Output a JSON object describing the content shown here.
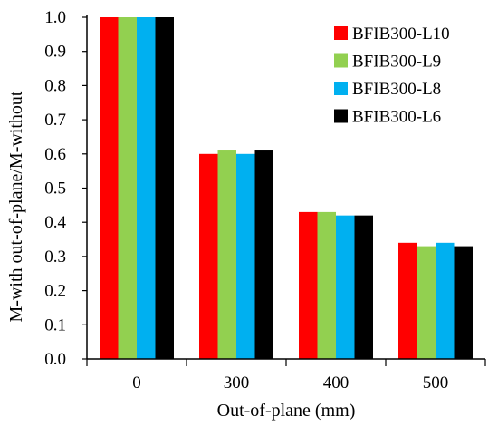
{
  "chart_data": {
    "type": "bar",
    "title": "",
    "xlabel": "Out-of-plane (mm)",
    "ylabel": "M-with out-of-plane/M-without",
    "categories": [
      "0",
      "300",
      "400",
      "500"
    ],
    "ylim": [
      0,
      1.0
    ],
    "yticks": [
      "0.0",
      "0.1",
      "0.2",
      "0.3",
      "0.4",
      "0.5",
      "0.6",
      "0.7",
      "0.8",
      "0.9",
      "1.0"
    ],
    "grid": false,
    "legend_position": "top-right",
    "series": [
      {
        "name": "BFIB300-L10",
        "color": "#ff0000",
        "values": [
          1.0,
          0.6,
          0.43,
          0.34
        ]
      },
      {
        "name": "BFIB300-L9",
        "color": "#92d050",
        "values": [
          1.0,
          0.61,
          0.43,
          0.33
        ]
      },
      {
        "name": "BFIB300-L8",
        "color": "#00b0f0",
        "values": [
          1.0,
          0.6,
          0.42,
          0.34
        ]
      },
      {
        "name": "BFIB300-L6",
        "color": "#000000",
        "values": [
          1.0,
          0.61,
          0.42,
          0.33
        ]
      }
    ]
  }
}
